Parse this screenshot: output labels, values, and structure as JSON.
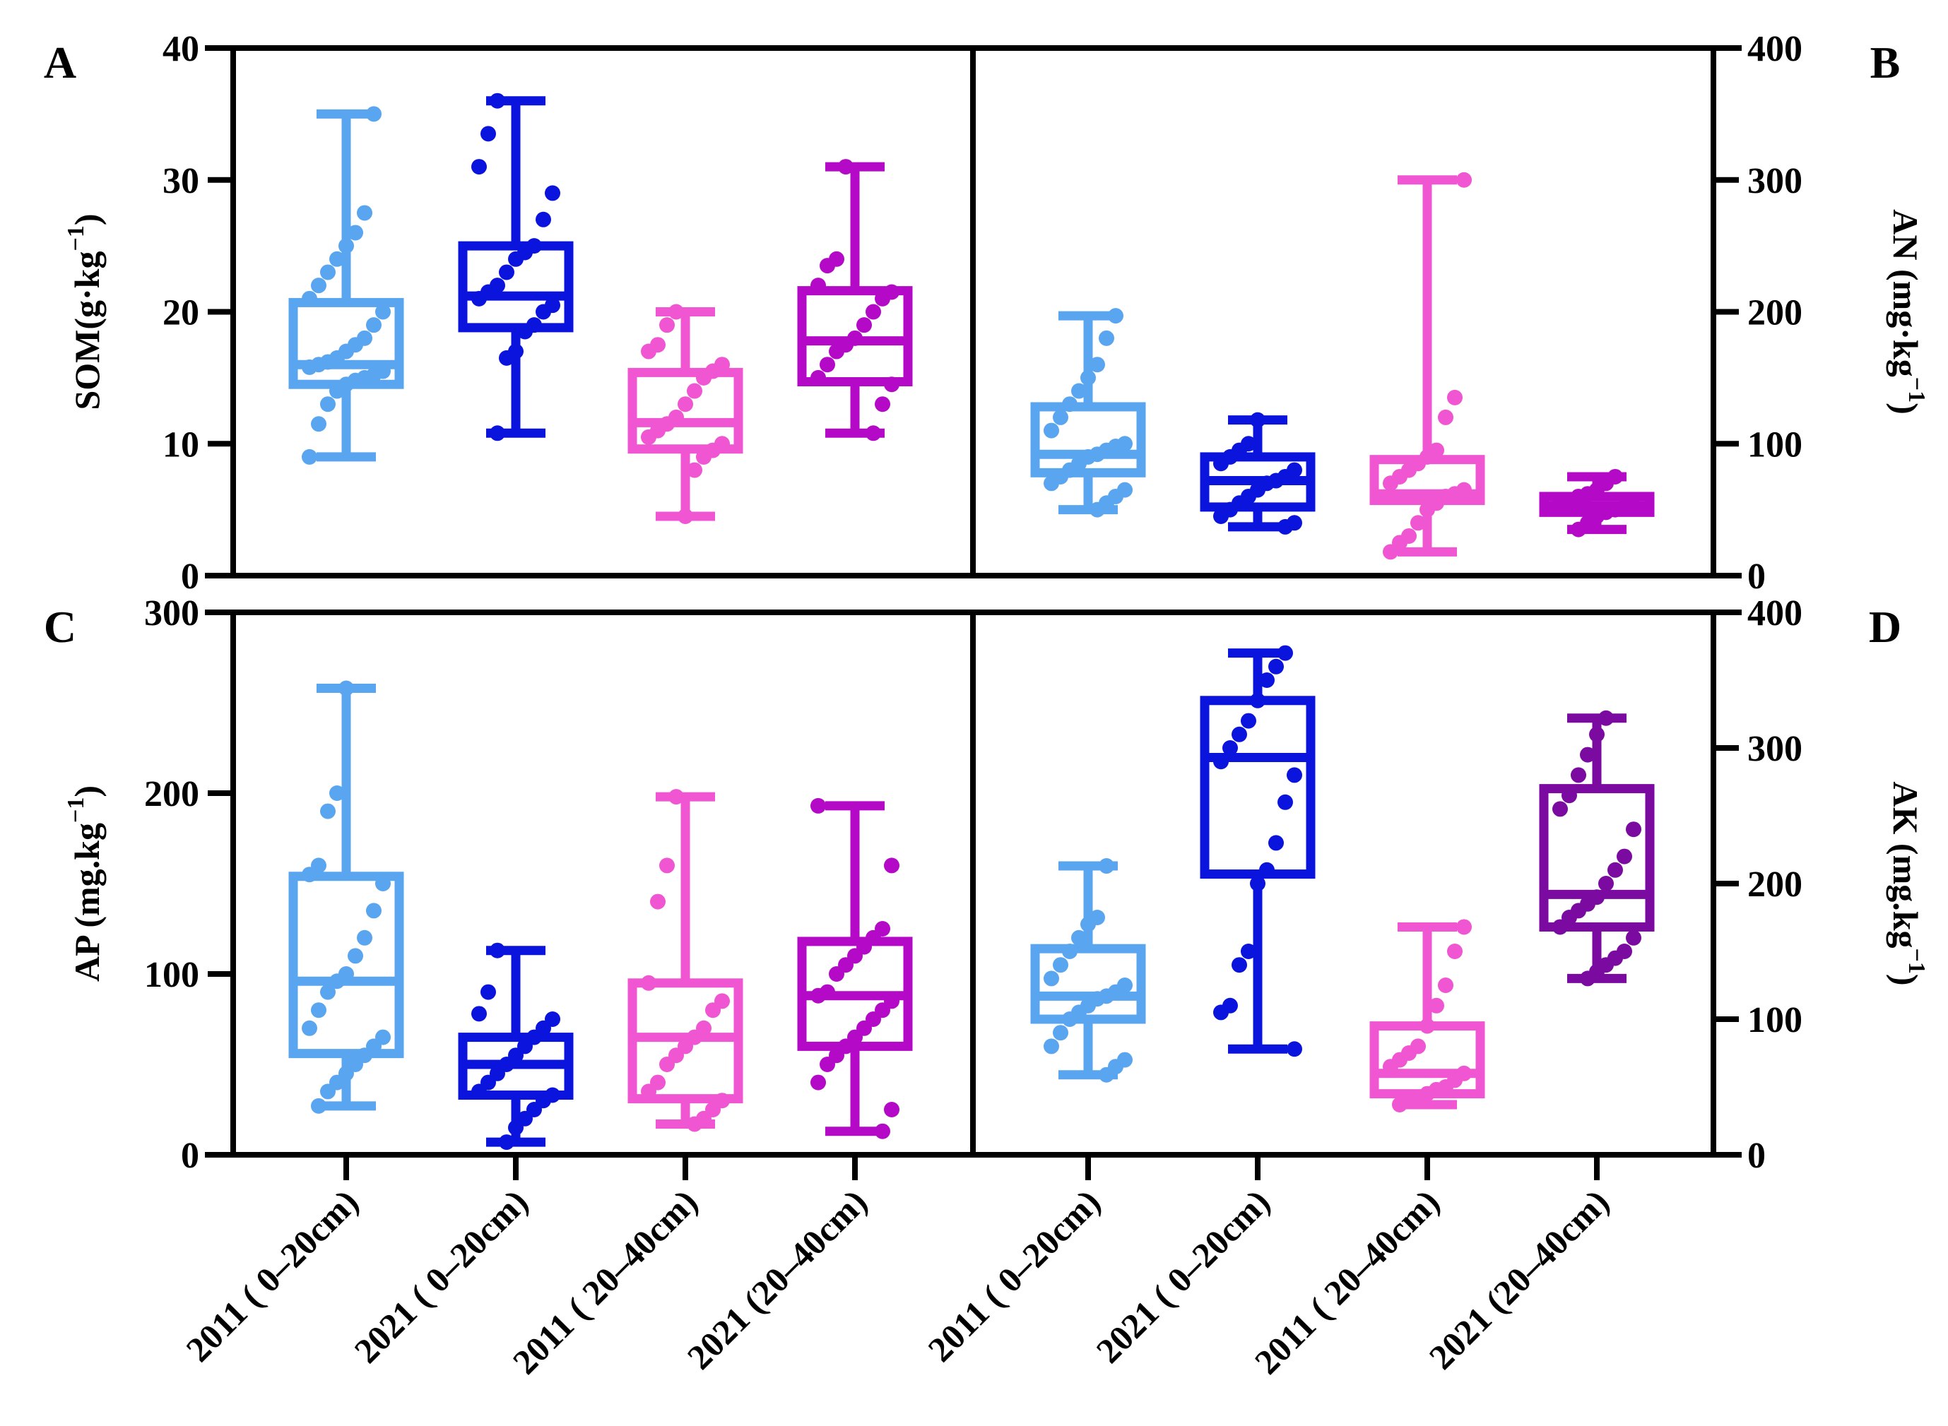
{
  "chart_data": {
    "type": "boxplot",
    "categories": [
      "2011 ( 0–20cm)",
      "2021 ( 0–20cm)",
      "2011 ( 20–40cm)",
      "2021 (20–40cm)"
    ],
    "colors": [
      "#5aa5f0",
      "#0a14dc",
      "#f055d2",
      "#b40ac8"
    ],
    "panels": [
      {
        "letter": "A",
        "ylabel": {
          "main": "SOM(g·kg",
          "sup": "−1",
          "close": ")"
        },
        "ylim": [
          0,
          40
        ],
        "ticks": [
          0,
          10,
          20,
          30,
          40
        ],
        "axis_side": "left",
        "colors": [
          "#5aa5f0",
          "#0a14dc",
          "#f055d2",
          "#b40ac8"
        ],
        "boxes": [
          {
            "min": 9,
            "q1": 14.5,
            "median": 16,
            "q3": 20.7,
            "max": 35
          },
          {
            "min": 10.8,
            "q1": 18.8,
            "median": 21.2,
            "q3": 25,
            "max": 36
          },
          {
            "min": 4.5,
            "q1": 9.6,
            "median": 11.6,
            "q3": 15.4,
            "max": 20
          },
          {
            "min": 10.8,
            "q1": 14.7,
            "median": 17.8,
            "q3": 21.6,
            "max": 31
          }
        ],
        "points": [
          [
            9,
            11.5,
            13,
            14,
            14.5,
            14.8,
            15,
            15.2,
            15.5,
            15.8,
            16,
            16.2,
            16.5,
            17,
            17.5,
            18,
            19,
            20,
            21,
            22,
            23,
            24,
            25,
            26,
            27.5,
            35
          ],
          [
            10.8,
            16.5,
            17,
            18.5,
            19,
            20,
            20.5,
            21,
            21.5,
            22,
            23,
            24,
            24.5,
            25,
            27,
            29,
            31,
            33.5,
            36
          ],
          [
            4.5,
            8,
            9,
            9.5,
            10,
            10.5,
            11,
            11.5,
            12,
            13,
            14,
            15,
            15.5,
            16,
            17,
            17.5,
            19,
            20
          ],
          [
            10.8,
            13,
            14.5,
            15,
            16,
            17,
            17.5,
            18,
            19,
            20,
            21,
            21.5,
            22,
            23.5,
            24,
            31
          ]
        ]
      },
      {
        "letter": "B",
        "ylabel": {
          "main": "AN (mg·kg",
          "sup": "−1",
          "close": ")"
        },
        "ylim": [
          0,
          400
        ],
        "ticks": [
          0,
          100,
          200,
          300,
          400
        ],
        "axis_side": "right",
        "colors": [
          "#5aa5f0",
          "#0a14dc",
          "#f055d2",
          "#b40ac8"
        ],
        "boxes": [
          {
            "min": 50,
            "q1": 78,
            "median": 92,
            "q3": 128,
            "max": 197
          },
          {
            "min": 37,
            "q1": 52,
            "median": 72,
            "q3": 90,
            "max": 118
          },
          {
            "min": 18,
            "q1": 57,
            "median": 62,
            "q3": 88,
            "max": 300
          },
          {
            "min": 35,
            "q1": 48,
            "median": 53,
            "q3": 60,
            "max": 75
          }
        ],
        "points": [
          [
            50,
            55,
            60,
            65,
            70,
            75,
            80,
            85,
            90,
            92,
            95,
            98,
            100,
            110,
            120,
            130,
            140,
            150,
            160,
            180,
            197
          ],
          [
            37,
            40,
            45,
            50,
            55,
            60,
            65,
            70,
            72,
            75,
            80,
            85,
            90,
            95,
            100,
            118
          ],
          [
            18,
            25,
            30,
            40,
            50,
            55,
            60,
            62,
            65,
            70,
            75,
            80,
            85,
            90,
            95,
            120,
            135,
            300
          ],
          [
            35,
            40,
            45,
            48,
            50,
            52,
            53,
            55,
            57,
            60,
            62,
            65,
            70,
            75
          ]
        ]
      },
      {
        "letter": "C",
        "ylabel": {
          "main": "AP (mg.kg",
          "sup": "−1",
          "close": ")"
        },
        "ylim": [
          0,
          300
        ],
        "ticks": [
          0,
          100,
          200,
          300
        ],
        "axis_side": "left",
        "colors": [
          "#5aa5f0",
          "#0a14dc",
          "#f055d2",
          "#b40ac8"
        ],
        "boxes": [
          {
            "min": 27,
            "q1": 56,
            "median": 96,
            "q3": 154,
            "max": 258
          },
          {
            "min": 7,
            "q1": 33,
            "median": 50,
            "q3": 65,
            "max": 113
          },
          {
            "min": 17,
            "q1": 31,
            "median": 65,
            "q3": 95,
            "max": 198
          },
          {
            "min": 13,
            "q1": 60,
            "median": 88,
            "q3": 118,
            "max": 193
          }
        ],
        "points": [
          [
            27,
            35,
            40,
            45,
            50,
            55,
            60,
            65,
            70,
            80,
            90,
            96,
            100,
            110,
            120,
            135,
            150,
            155,
            160,
            190,
            200,
            258
          ],
          [
            7,
            15,
            20,
            25,
            30,
            33,
            35,
            40,
            45,
            50,
            55,
            60,
            65,
            70,
            75,
            78,
            90,
            113
          ],
          [
            17,
            20,
            25,
            30,
            35,
            40,
            50,
            55,
            60,
            65,
            70,
            80,
            85,
            95,
            140,
            160,
            198
          ],
          [
            13,
            25,
            40,
            50,
            55,
            60,
            65,
            70,
            75,
            80,
            85,
            88,
            90,
            100,
            105,
            110,
            115,
            120,
            125,
            160,
            193
          ]
        ]
      },
      {
        "letter": "D",
        "ylabel": {
          "main": "AK (mg.kg",
          "sup": "−1",
          "close": ")"
        },
        "ylim": [
          0,
          400
        ],
        "ticks": [
          0,
          100,
          200,
          300,
          400
        ],
        "axis_side": "right",
        "colors": [
          "#5aa5f0",
          "#0a14dc",
          "#f055d2",
          "#7a0aa0"
        ],
        "boxes": [
          {
            "min": 59,
            "q1": 100,
            "median": 117,
            "q3": 152,
            "max": 213
          },
          {
            "min": 78,
            "q1": 207,
            "median": 293,
            "q3": 335,
            "max": 370
          },
          {
            "min": 37,
            "q1": 45,
            "median": 60,
            "q3": 95,
            "max": 168
          },
          {
            "min": 130,
            "q1": 168,
            "median": 192,
            "q3": 270,
            "max": 322
          }
        ],
        "points": [
          [
            59,
            65,
            70,
            80,
            90,
            100,
            105,
            110,
            115,
            117,
            120,
            125,
            130,
            140,
            150,
            160,
            170,
            175,
            213
          ],
          [
            78,
            105,
            110,
            140,
            150,
            200,
            210,
            230,
            260,
            280,
            290,
            300,
            310,
            320,
            335,
            350,
            360,
            370
          ],
          [
            37,
            40,
            42,
            45,
            48,
            50,
            55,
            60,
            65,
            70,
            75,
            80,
            95,
            110,
            125,
            150,
            168
          ],
          [
            130,
            135,
            140,
            145,
            150,
            160,
            168,
            175,
            180,
            185,
            190,
            200,
            210,
            220,
            240,
            255,
            265,
            280,
            295,
            310,
            322
          ]
        ]
      }
    ]
  }
}
